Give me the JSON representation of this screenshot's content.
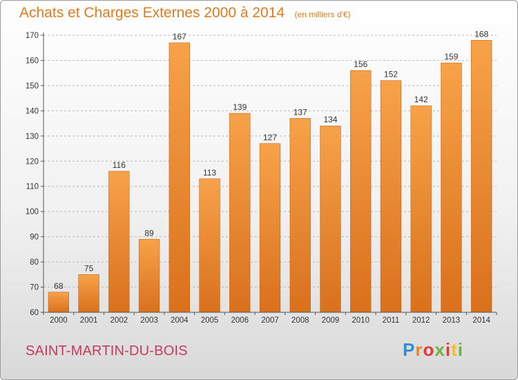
{
  "chart_data": {
    "type": "bar",
    "title": "Achats et Charges Externes 2000 à 2014",
    "subtitle": "(en milliers d'€)",
    "categories": [
      "2000",
      "2001",
      "2002",
      "2003",
      "2004",
      "2005",
      "2006",
      "2007",
      "2008",
      "2009",
      "2010",
      "2011",
      "2012",
      "2013",
      "2014"
    ],
    "values": [
      68,
      75,
      116,
      89,
      167,
      113,
      139,
      127,
      137,
      134,
      156,
      152,
      142,
      159,
      168
    ],
    "ylim": [
      60,
      170
    ],
    "yticks": [
      60,
      70,
      80,
      90,
      100,
      110,
      120,
      130,
      140,
      150,
      160,
      170
    ],
    "grid": true,
    "colors": {
      "bar_top": "#f7a24a",
      "bar_bottom": "#d9701c",
      "label": "#333333",
      "axis": "#555555"
    }
  },
  "footer": {
    "city": "SAINT-MARTIN-DU-BOIS",
    "logo": "Proxiti"
  }
}
